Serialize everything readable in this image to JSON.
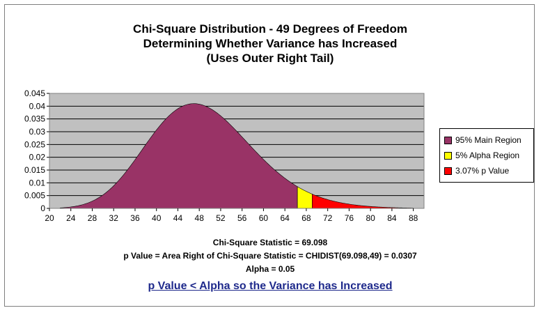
{
  "title_lines": [
    "Chi-Square Distribution - 49 Degrees of Freedom",
    "Determining Whether Variance has Increased",
    "(Uses Outer Right Tail)"
  ],
  "chart_data": {
    "type": "area",
    "degrees_of_freedom": 49,
    "x_ticks": [
      20,
      24,
      28,
      32,
      36,
      40,
      44,
      48,
      52,
      56,
      60,
      64,
      68,
      72,
      76,
      80,
      84,
      88
    ],
    "y_ticks": [
      "0",
      "0.005",
      "0.01",
      "0.015",
      "0.02",
      "0.025",
      "0.03",
      "0.035",
      "0.04",
      "0.045"
    ],
    "xlim": [
      20,
      90
    ],
    "ylim": [
      0,
      0.045
    ],
    "grid": true,
    "legend_placement": "right",
    "regions": [
      {
        "name": "95% Main Region",
        "x_range": [
          22,
          66.34
        ],
        "color": "#993366"
      },
      {
        "name": "5% Alpha Region",
        "x_range": [
          66.34,
          69.098
        ],
        "color": "#ffff00"
      },
      {
        "name": "3.07% p Value",
        "x_range": [
          69.098,
          88
        ],
        "color": "#ff0000"
      }
    ]
  },
  "annotations": {
    "statistic": "Chi-Square Statistic = 69.098",
    "p_value": "p Value = Area Right of Chi-Square Statistic = CHIDIST(69.098,49) = 0.0307",
    "alpha": "Alpha = 0.05",
    "conclusion": "p Value < Alpha so the Variance has Increased"
  },
  "colors": {
    "plot_background": "#c0c0c0",
    "main_region": "#993366",
    "alpha_region": "#ffff00",
    "p_region": "#ff0000",
    "conclusion_text": "#1f2a8c"
  }
}
